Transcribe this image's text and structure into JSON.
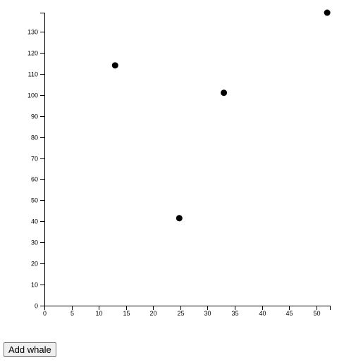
{
  "chart_data": {
    "type": "scatter",
    "title": "",
    "xlabel": "",
    "ylabel": "",
    "xlim": [
      0,
      52.5
    ],
    "ylim": [
      0,
      139
    ],
    "x_ticks": [
      0,
      5,
      10,
      15,
      20,
      25,
      30,
      35,
      40,
      45,
      50
    ],
    "y_ticks": [
      0,
      10,
      20,
      30,
      40,
      50,
      60,
      70,
      80,
      90,
      100,
      110,
      120,
      130
    ],
    "grid": false,
    "marker_color": "#000000",
    "points": [
      {
        "x": 13,
        "y": 114
      },
      {
        "x": 24.8,
        "y": 41.5
      },
      {
        "x": 33,
        "y": 101
      },
      {
        "x": 52,
        "y": 139
      }
    ]
  },
  "controls": {
    "add_label": "Add whale"
  }
}
